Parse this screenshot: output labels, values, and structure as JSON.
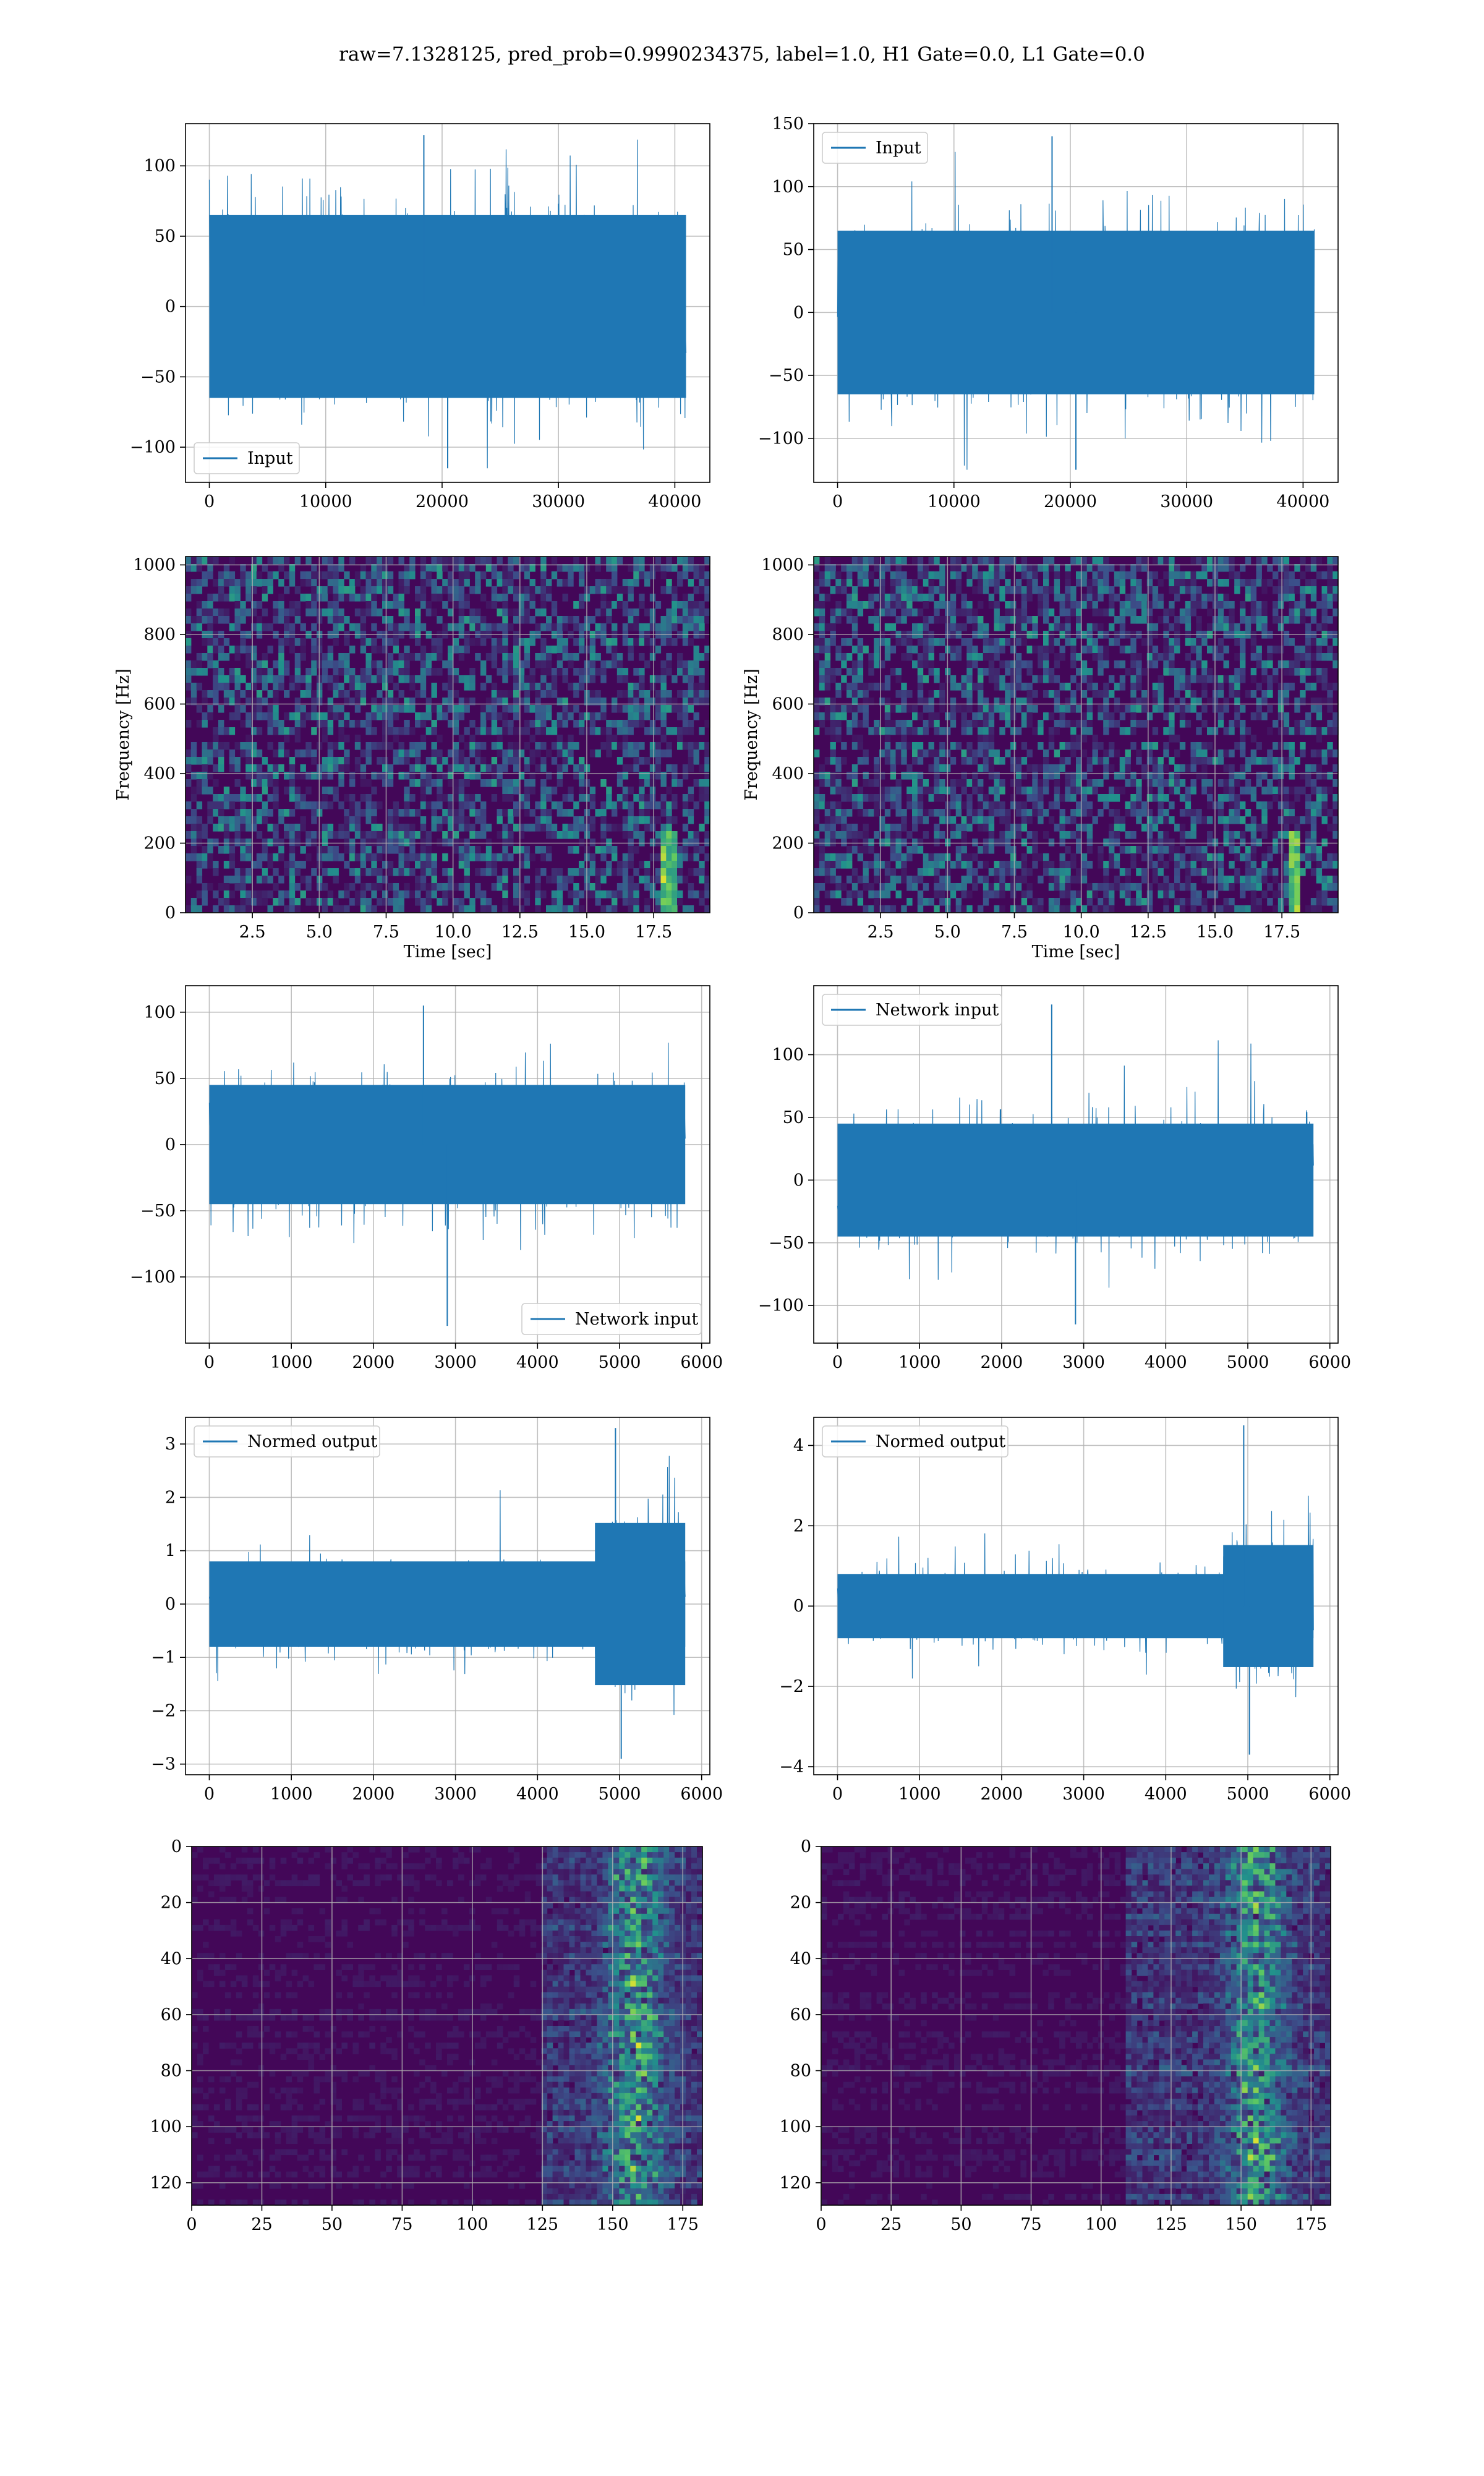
{
  "figure": {
    "title": "raw=7.1328125, pred_prob=0.9990234375, label=1.0, H1 Gate=0.0, L1 Gate=0.0",
    "line_color": "#1f77b4"
  },
  "chart_data": [
    {
      "type": "line",
      "panel": "row1-left",
      "title": "",
      "xlabel": "",
      "ylabel": "",
      "xlim": [
        -2048,
        43008
      ],
      "ylim": [
        -125,
        130
      ],
      "n_points": 40960,
      "xticks": [
        0,
        10000,
        20000,
        30000,
        40000
      ],
      "yticks": [
        -100,
        -50,
        0,
        50,
        100
      ],
      "xtick_labels": [
        "0",
        "10000",
        "20000",
        "30000",
        "40000"
      ],
      "ytick_labels": [
        "−100",
        "−50",
        "0",
        "50",
        "100"
      ],
      "series": [
        {
          "name": "Input",
          "envelope": {
            "typical": [
              -65,
              65
            ],
            "min": -115,
            "max": 122
          }
        }
      ],
      "legend": "lower-left",
      "grid": true
    },
    {
      "type": "line",
      "panel": "row1-right",
      "title": "",
      "xlabel": "",
      "ylabel": "",
      "xlim": [
        -2048,
        43008
      ],
      "ylim": [
        -135,
        150
      ],
      "n_points": 40960,
      "xticks": [
        0,
        10000,
        20000,
        30000,
        40000
      ],
      "yticks": [
        -100,
        -50,
        0,
        50,
        100,
        150
      ],
      "xtick_labels": [
        "0",
        "10000",
        "20000",
        "30000",
        "40000"
      ],
      "ytick_labels": [
        "−100",
        "−50",
        "0",
        "50",
        "100",
        "150"
      ],
      "series": [
        {
          "name": "Input",
          "envelope": {
            "typical": [
              -65,
              65
            ],
            "min": -125,
            "max": 140
          }
        }
      ],
      "legend": "upper-left",
      "grid": true
    },
    {
      "type": "heatmap",
      "panel": "row2-left",
      "title": "",
      "xlabel": "Time [sec]",
      "ylabel": "Frequency [Hz]",
      "xlim": [
        0,
        19.6
      ],
      "ylim": [
        0,
        1024
      ],
      "xticks": [
        2.5,
        5.0,
        7.5,
        10.0,
        12.5,
        15.0,
        17.5
      ],
      "yticks": [
        0,
        200,
        400,
        600,
        800,
        1000
      ],
      "xtick_labels": [
        "2.5",
        "5.0",
        "7.5",
        "10.0",
        "12.5",
        "15.0",
        "17.5"
      ],
      "ytick_labels": [
        "0",
        "200",
        "400",
        "600",
        "800",
        "1000"
      ],
      "colormap": "viridis",
      "features": {
        "dark_band_hz": [
          480,
          510
        ],
        "chirp_sec": 18.1
      },
      "grid": true
    },
    {
      "type": "heatmap",
      "panel": "row2-right",
      "title": "",
      "xlabel": "Time [sec]",
      "ylabel": "Frequency [Hz]",
      "xlim": [
        0,
        19.6
      ],
      "ylim": [
        0,
        1024
      ],
      "xticks": [
        2.5,
        5.0,
        7.5,
        10.0,
        12.5,
        15.0,
        17.5
      ],
      "yticks": [
        0,
        200,
        400,
        600,
        800,
        1000
      ],
      "xtick_labels": [
        "2.5",
        "5.0",
        "7.5",
        "10.0",
        "12.5",
        "15.0",
        "17.5"
      ],
      "ytick_labels": [
        "0",
        "200",
        "400",
        "600",
        "800",
        "1000"
      ],
      "colormap": "viridis",
      "features": {
        "dark_band_hz": [
          480,
          510
        ],
        "chirp_sec": 18.0
      },
      "grid": true
    },
    {
      "type": "line",
      "panel": "row3-left",
      "title": "",
      "xlabel": "",
      "ylabel": "",
      "xlim": [
        -290,
        6100
      ],
      "ylim": [
        -150,
        120
      ],
      "n_points": 5800,
      "xticks": [
        0,
        1000,
        2000,
        3000,
        4000,
        5000,
        6000
      ],
      "yticks": [
        -100,
        -50,
        0,
        50,
        100
      ],
      "xtick_labels": [
        "0",
        "1000",
        "2000",
        "3000",
        "4000",
        "5000",
        "6000"
      ],
      "ytick_labels": [
        "−100",
        "−50",
        "0",
        "50",
        "100"
      ],
      "series": [
        {
          "name": "Network input",
          "envelope": {
            "typical": [
              -45,
              45
            ],
            "min": -137,
            "max": 105
          }
        }
      ],
      "legend": "lower-right",
      "grid": true
    },
    {
      "type": "line",
      "panel": "row3-right",
      "title": "",
      "xlabel": "",
      "ylabel": "",
      "xlim": [
        -290,
        6100
      ],
      "ylim": [
        -130,
        155
      ],
      "n_points": 5800,
      "xticks": [
        0,
        1000,
        2000,
        3000,
        4000,
        5000,
        6000
      ],
      "yticks": [
        -100,
        -50,
        0,
        50,
        100
      ],
      "xtick_labels": [
        "0",
        "1000",
        "2000",
        "3000",
        "4000",
        "5000",
        "6000"
      ],
      "ytick_labels": [
        "−100",
        "−50",
        "0",
        "50",
        "100"
      ],
      "series": [
        {
          "name": "Network input",
          "envelope": {
            "typical": [
              -45,
              45
            ],
            "min": -115,
            "max": 140
          }
        }
      ],
      "legend": "upper-left",
      "grid": true
    },
    {
      "type": "line",
      "panel": "row4-left",
      "title": "",
      "xlabel": "",
      "ylabel": "",
      "xlim": [
        -290,
        6100
      ],
      "ylim": [
        -3.2,
        3.5
      ],
      "n_points": 5800,
      "xticks": [
        0,
        1000,
        2000,
        3000,
        4000,
        5000,
        6000
      ],
      "yticks": [
        -3,
        -2,
        -1,
        0,
        1,
        2,
        3
      ],
      "xtick_labels": [
        "0",
        "1000",
        "2000",
        "3000",
        "4000",
        "5000",
        "6000"
      ],
      "ytick_labels": [
        "−3",
        "−2",
        "−1",
        "0",
        "1",
        "2",
        "3"
      ],
      "series": [
        {
          "name": "Normed output",
          "envelope": {
            "typical": [
              -0.8,
              0.8
            ],
            "burst_start": 4700,
            "burst_range": [
              -2.9,
              3.3
            ]
          }
        }
      ],
      "legend": "upper-left",
      "grid": true
    },
    {
      "type": "line",
      "panel": "row4-right",
      "title": "",
      "xlabel": "",
      "ylabel": "",
      "xlim": [
        -290,
        6100
      ],
      "ylim": [
        -4.2,
        4.7
      ],
      "n_points": 5800,
      "xticks": [
        0,
        1000,
        2000,
        3000,
        4000,
        5000,
        6000
      ],
      "yticks": [
        -4,
        -2,
        0,
        2,
        4
      ],
      "xtick_labels": [
        "0",
        "1000",
        "2000",
        "3000",
        "4000",
        "5000",
        "6000"
      ],
      "ytick_labels": [
        "−4",
        "−2",
        "0",
        "2",
        "4"
      ],
      "series": [
        {
          "name": "Normed output",
          "envelope": {
            "typical": [
              -0.8,
              0.8
            ],
            "burst_start": 4700,
            "burst_range": [
              -3.7,
              4.5
            ]
          }
        }
      ],
      "legend": "upper-left",
      "grid": true
    },
    {
      "type": "heatmap",
      "panel": "row5-left",
      "title": "",
      "xlabel": "",
      "ylabel": "",
      "xlim": [
        0,
        182
      ],
      "ylim": [
        128,
        0
      ],
      "xticks": [
        0,
        25,
        50,
        75,
        100,
        125,
        150,
        175
      ],
      "yticks": [
        0,
        20,
        40,
        60,
        80,
        100,
        120
      ],
      "xtick_labels": [
        "0",
        "25",
        "50",
        "75",
        "100",
        "125",
        "150",
        "175"
      ],
      "ytick_labels": [
        "0",
        "20",
        "40",
        "60",
        "80",
        "100",
        "120"
      ],
      "colormap": "viridis",
      "features": {
        "activity_start_col": 124,
        "peak_col": 158
      },
      "grid": true
    },
    {
      "type": "heatmap",
      "panel": "row5-right",
      "title": "",
      "xlabel": "",
      "ylabel": "",
      "xlim": [
        0,
        182
      ],
      "ylim": [
        128,
        0
      ],
      "xticks": [
        0,
        25,
        50,
        75,
        100,
        125,
        150,
        175
      ],
      "yticks": [
        0,
        20,
        40,
        60,
        80,
        100,
        120
      ],
      "xtick_labels": [
        "0",
        "25",
        "50",
        "75",
        "100",
        "125",
        "150",
        "175"
      ],
      "ytick_labels": [
        "0",
        "20",
        "40",
        "60",
        "80",
        "100",
        "120"
      ],
      "colormap": "viridis",
      "features": {
        "activity_start_col": 108,
        "peak_col": 156
      },
      "grid": true
    }
  ]
}
